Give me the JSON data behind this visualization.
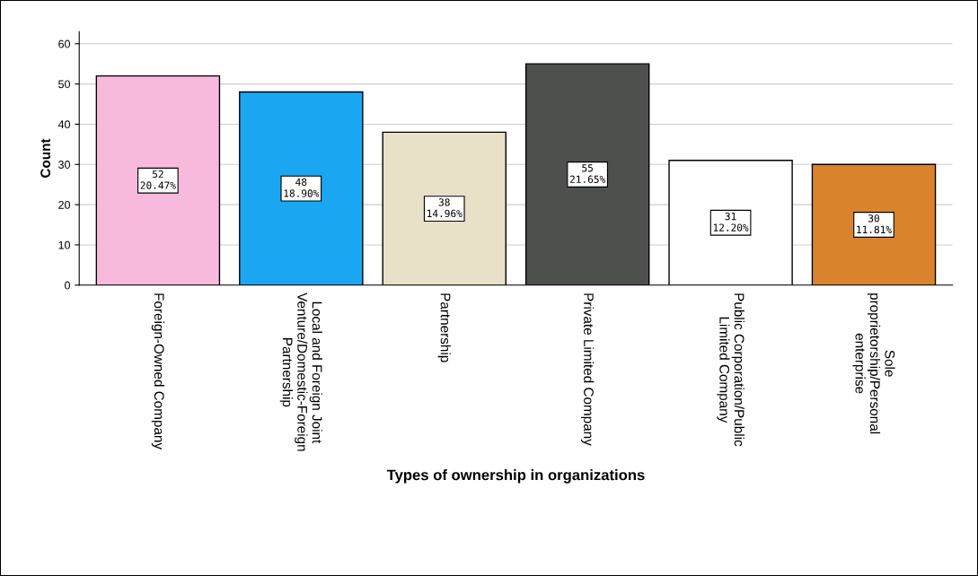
{
  "chart_data": {
    "type": "bar",
    "xlabel": "Types of ownership in organizations",
    "ylabel": "Count",
    "categories": [
      "Foreign-Owned Company",
      "Local and Foreign Joint\nVenture/Domestic-Foreign\nPartnership",
      "Partnership",
      "Private Limited Company",
      "Public Corporation/Public\nLimited Company",
      "Sole\nproprietorship/Personal\nenterprise"
    ],
    "values": [
      52,
      48,
      38,
      55,
      31,
      30
    ],
    "colors": [
      "#f7b9dc",
      "#1ba6f2",
      "#e8e0c7",
      "#4c514c",
      "#ffffff",
      "#d9842c"
    ],
    "value_labels": [
      "52\n20.47%",
      "48\n18.90%",
      "38\n14.96%",
      "55\n21.65%",
      "31\n12.20%",
      "30\n11.81%"
    ],
    "ylim": [
      0,
      63
    ],
    "yticks": [
      0,
      10,
      20,
      30,
      40,
      50,
      60
    ],
    "grid": "y",
    "legend": false
  }
}
